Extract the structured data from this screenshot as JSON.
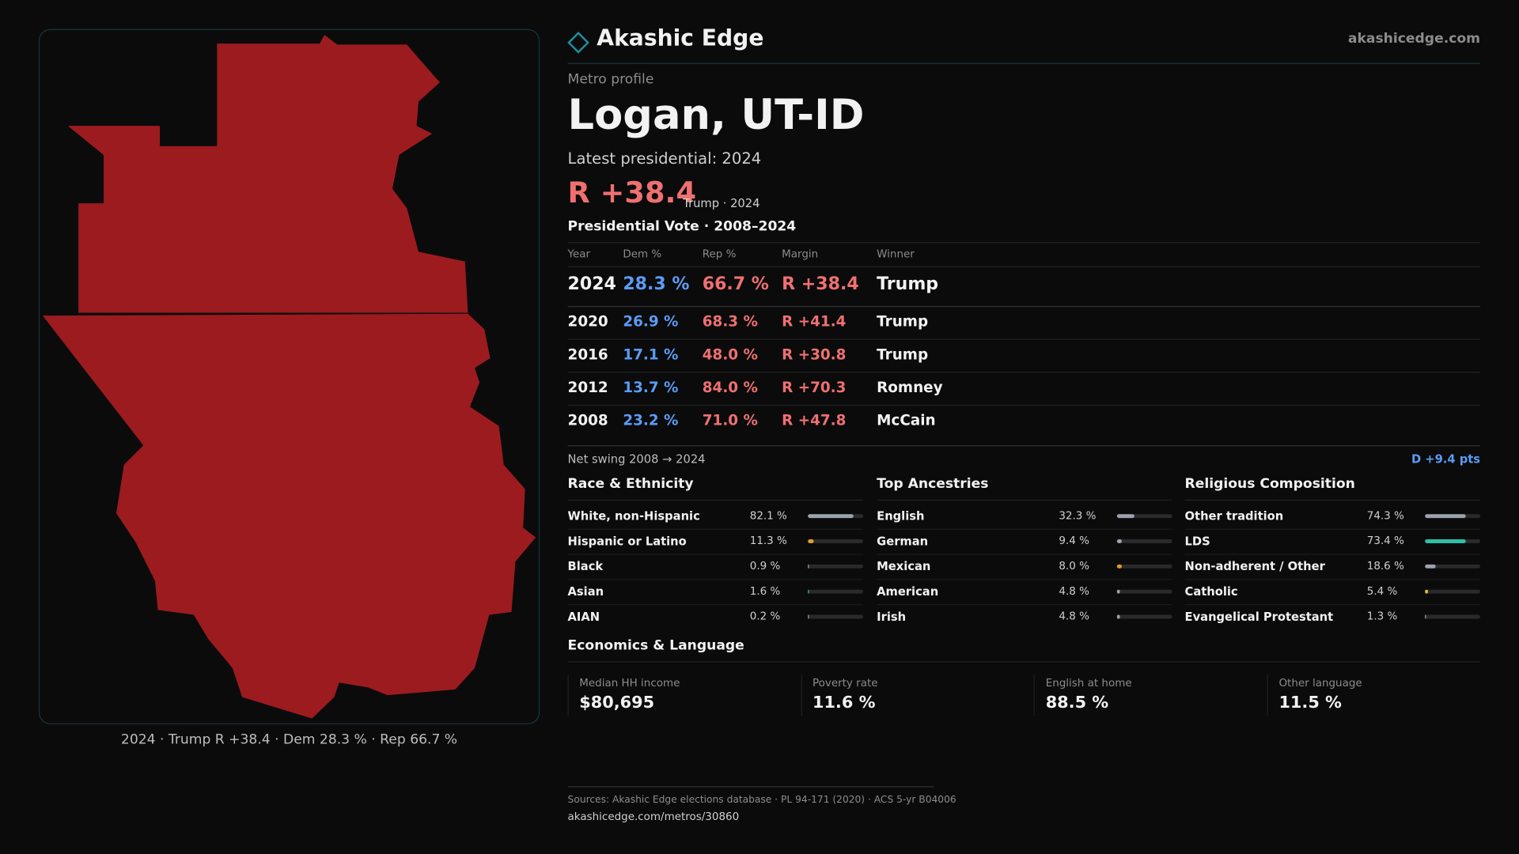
{
  "brand": {
    "name": "Akashic Edge",
    "site": "akashicedge.com"
  },
  "profile": {
    "kicker": "Metro profile",
    "title": "Logan, UT-ID",
    "latest": "Latest presidential: 2024",
    "margin": "R +38.4",
    "margin_note": "Trump · 2024"
  },
  "vote_table": {
    "title": "Presidential Vote · 2008–2024",
    "columns": [
      "Year",
      "Dem %",
      "Rep %",
      "Margin",
      "Winner"
    ],
    "rows": [
      [
        "2024",
        "28.3 %",
        "66.7 %",
        "R +38.4",
        "Trump"
      ],
      [
        "2020",
        "26.9 %",
        "68.3 %",
        "R +41.4",
        "Trump"
      ],
      [
        "2016",
        "17.1 %",
        "48.0 %",
        "R +30.8",
        "Trump"
      ],
      [
        "2012",
        "13.7 %",
        "84.0 %",
        "R +70.3",
        "Romney"
      ],
      [
        "2008",
        "23.2 %",
        "71.0 %",
        "R +47.8",
        "McCain"
      ]
    ]
  },
  "swing": {
    "label": "Net swing 2008 → 2024",
    "value": "D +9.4 pts"
  },
  "race": {
    "title": "Race & Ethnicity",
    "rows": [
      {
        "name": "White, non-Hispanic",
        "value": 82.1,
        "label": "82.1 %",
        "color": "#9aa3ad"
      },
      {
        "name": "Hispanic or Latino",
        "value": 11.3,
        "label": "11.3 %",
        "color": "#e39a2a"
      },
      {
        "name": "Black",
        "value": 0.9,
        "label": "0.9 %",
        "color": "#9aa3ad"
      },
      {
        "name": "Asian",
        "value": 1.6,
        "label": "1.6 %",
        "color": "#2fbfa5"
      },
      {
        "name": "AIAN",
        "value": 0.2,
        "label": "0.2 %",
        "color": "#9aa3ad"
      }
    ]
  },
  "ancestry": {
    "title": "Top Ancestries",
    "rows": [
      {
        "name": "English",
        "value": 32.3,
        "label": "32.3 %",
        "color": "#9aa3ad"
      },
      {
        "name": "German",
        "value": 9.4,
        "label": "9.4 %",
        "color": "#9aa3ad"
      },
      {
        "name": "Mexican",
        "value": 8.0,
        "label": "8.0 %",
        "color": "#e39a2a"
      },
      {
        "name": "American",
        "value": 4.8,
        "label": "4.8 %",
        "color": "#9aa3ad"
      },
      {
        "name": "Irish",
        "value": 4.8,
        "label": "4.8 %",
        "color": "#9aa3ad"
      }
    ]
  },
  "religion": {
    "title": "Religious Composition",
    "rows": [
      {
        "name": "Other tradition",
        "value": 74.3,
        "label": "74.3 %",
        "color": "#9aa3ad"
      },
      {
        "name": "LDS",
        "value": 73.4,
        "label": "73.4 %",
        "color": "#2fbfa5"
      },
      {
        "name": "Non-adherent / Other",
        "value": 18.6,
        "label": "18.6 %",
        "color": "#9aa3ad"
      },
      {
        "name": "Catholic",
        "value": 5.4,
        "label": "5.4 %",
        "color": "#e3c02a"
      },
      {
        "name": "Evangelical Protestant",
        "value": 1.3,
        "label": "1.3 %",
        "color": "#9aa3ad"
      }
    ]
  },
  "economics": {
    "title": "Economics & Language",
    "cards": [
      {
        "label": "Median HH income",
        "value": "$80,695"
      },
      {
        "label": "Poverty rate",
        "value": "11.6 %"
      },
      {
        "label": "English at home",
        "value": "88.5 %"
      },
      {
        "label": "Other language",
        "value": "11.5 %"
      }
    ]
  },
  "map_caption": "2024 · Trump R +38.4 · Dem 28.3 % · Rep 66.7 %",
  "footer": {
    "sources": "Sources: Akashic Edge elections database · PL 94-171 (2020) · ACS 5-yr B04006",
    "url": "akashicedge.com/metros/30860"
  }
}
